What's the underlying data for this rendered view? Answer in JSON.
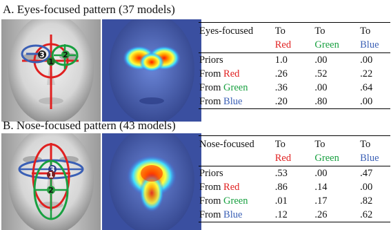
{
  "colors": {
    "red": "#e02020",
    "green": "#18a040",
    "blue": "#3a5fb5"
  },
  "section_a": {
    "title": "A. Eyes-focused pattern (37 models)",
    "face_markers": [
      "1",
      "2",
      "3"
    ],
    "table": {
      "corner": "Eyes-focused",
      "to_label": "To",
      "cols": [
        "Red",
        "Green",
        "Blue"
      ],
      "rows": [
        {
          "label": "Priors",
          "from_word": "",
          "color_word": "",
          "values": [
            "1.0",
            ".00",
            ".00"
          ]
        },
        {
          "label": "From ",
          "from_word": "From ",
          "color_word": "Red",
          "color": "red",
          "values": [
            ".26",
            ".52",
            ".22"
          ]
        },
        {
          "label": "From ",
          "from_word": "From ",
          "color_word": "Green",
          "color": "green",
          "values": [
            ".36",
            ".00",
            ".64"
          ]
        },
        {
          "label": "From ",
          "from_word": "From ",
          "color_word": "Blue",
          "color": "blue",
          "values": [
            ".20",
            ".80",
            ".00"
          ]
        }
      ]
    }
  },
  "section_b": {
    "title": "B. Nose-focused pattern (43 models)",
    "face_markers": [
      "1",
      "2",
      "3"
    ],
    "table": {
      "corner": "Nose-focused",
      "to_label": "To",
      "cols": [
        "Red",
        "Green",
        "Blue"
      ],
      "rows": [
        {
          "label": "Priors",
          "values": [
            ".53",
            ".00",
            ".47"
          ]
        },
        {
          "from_word": "From ",
          "color_word": "Red",
          "values": [
            ".86",
            ".14",
            ".00"
          ]
        },
        {
          "from_word": "From ",
          "color_word": "Green",
          "values": [
            ".01",
            ".17",
            ".82"
          ]
        },
        {
          "from_word": "From ",
          "color_word": "Blue",
          "values": [
            ".12",
            ".26",
            ".62"
          ]
        }
      ]
    }
  }
}
